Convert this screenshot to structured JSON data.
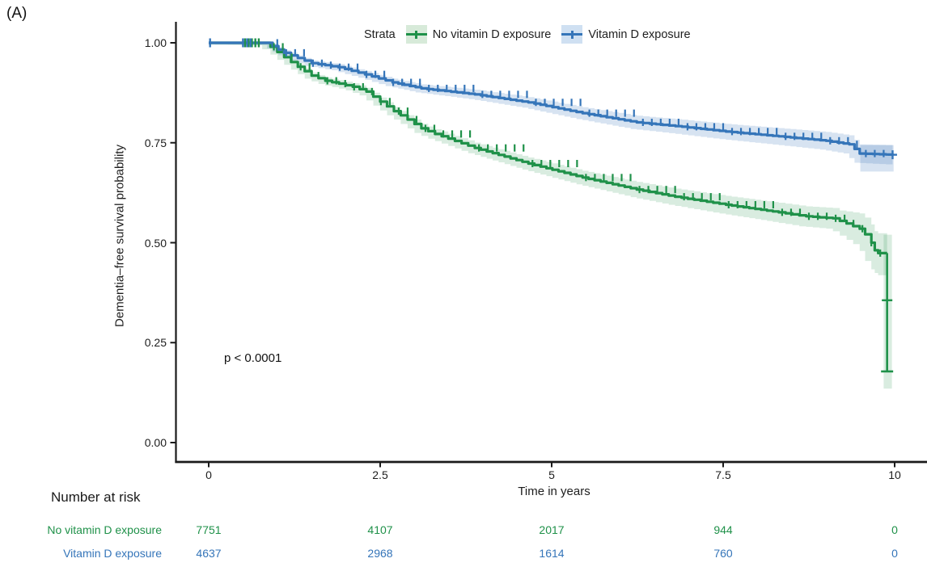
{
  "figure": {
    "panel_label": "(A)",
    "background": "#ffffff"
  },
  "chart_data": {
    "type": "line",
    "subtype": "kaplan_meier_survival",
    "title": "",
    "xlabel": "Time in years",
    "ylabel": "Dementia–free survival probability",
    "xlim": [
      0,
      10
    ],
    "ylim": [
      0,
      1
    ],
    "grid": false,
    "legend": {
      "title": "Strata",
      "position": "top"
    },
    "annotations": [
      {
        "text": "p < 0.0001",
        "time": 0.22,
        "probability": 0.21
      }
    ],
    "x_ticks": [
      {
        "value": 0,
        "label": "0"
      },
      {
        "value": 2.5,
        "label": "2.5"
      },
      {
        "value": 5,
        "label": "5"
      },
      {
        "value": 7.5,
        "label": "7.5"
      },
      {
        "value": 10,
        "label": "10"
      }
    ],
    "y_ticks": [
      {
        "value": 0,
        "label": "0.00"
      },
      {
        "value": 0.25,
        "label": "0.25"
      },
      {
        "value": 0.5,
        "label": "0.50"
      },
      {
        "value": 0.75,
        "label": "0.75"
      },
      {
        "value": 1,
        "label": "1.00"
      }
    ],
    "series": [
      {
        "name": "No vitamin D exposure",
        "color": "#1f9149",
        "ci_color": "rgba(31,145,73,0.17)",
        "legend_key_bg": "#d7ead9",
        "points": [
          [
            0,
            1.0
          ],
          [
            0.78,
            1.0
          ],
          [
            0.9,
            0.99
          ],
          [
            1.1,
            0.964
          ],
          [
            1.3,
            0.94
          ],
          [
            1.5,
            0.918
          ],
          [
            1.7,
            0.905
          ],
          [
            1.9,
            0.898
          ],
          [
            2.1,
            0.89
          ],
          [
            2.3,
            0.878
          ],
          [
            2.5,
            0.853
          ],
          [
            2.7,
            0.829
          ],
          [
            2.9,
            0.808
          ],
          [
            3.1,
            0.786
          ],
          [
            3.3,
            0.772
          ],
          [
            3.88,
            0.737
          ],
          [
            4.66,
            0.698
          ],
          [
            5.45,
            0.663
          ],
          [
            6.24,
            0.633
          ],
          [
            6.8,
            0.615
          ],
          [
            7.54,
            0.595
          ],
          [
            8.31,
            0.576
          ],
          [
            8.71,
            0.566
          ],
          [
            9.1,
            0.561
          ],
          [
            9.3,
            0.548
          ],
          [
            9.49,
            0.535
          ],
          [
            9.57,
            0.521
          ],
          [
            9.66,
            0.5
          ],
          [
            9.71,
            0.481
          ],
          [
            9.76,
            0.474
          ],
          [
            9.89,
            0.474
          ]
        ],
        "ci": {
          "base": 0.004,
          "growth": 0.0024,
          "end_ramp": [
            9.2,
            0.04
          ],
          "end_band": {
            "t0": 9.84,
            "t1": 9.96,
            "p0": 0.135,
            "p1": 0.52
          }
        },
        "early_censors": [
          0.53,
          0.58,
          0.63,
          0.68,
          0.73
        ],
        "dense_censor_from": 0.95,
        "final_drop": {
          "time": 9.89,
          "from": 0.474,
          "to": 0.178,
          "censor_at": 0.356
        }
      },
      {
        "name": "Vitamin D exposure",
        "color": "#3575b9",
        "ci_color": "rgba(53,117,185,0.20)",
        "legend_key_bg": "#cfe0f2",
        "points": [
          [
            0,
            1.0
          ],
          [
            0.85,
            1.0
          ],
          [
            1.1,
            0.975
          ],
          [
            1.5,
            0.949
          ],
          [
            1.7,
            0.944
          ],
          [
            1.89,
            0.939
          ],
          [
            2.28,
            0.921
          ],
          [
            2.68,
            0.901
          ],
          [
            3.1,
            0.886
          ],
          [
            3.88,
            0.871
          ],
          [
            4.66,
            0.851
          ],
          [
            5.45,
            0.824
          ],
          [
            6.24,
            0.801
          ],
          [
            6.9,
            0.79
          ],
          [
            7.54,
            0.778
          ],
          [
            8.31,
            0.766
          ],
          [
            9.0,
            0.755
          ],
          [
            9.34,
            0.746
          ],
          [
            9.49,
            0.723
          ],
          [
            9.97,
            0.72
          ]
        ],
        "ci": {
          "base": 0.004,
          "growth": 0.002,
          "end_ramp": null,
          "end_band": {
            "t0": 9.5,
            "t1": 9.985,
            "p0": 0.678,
            "p1": 0.744
          }
        },
        "early_censors": [
          0.02,
          0.5,
          0.56,
          0.61
        ],
        "dense_censor_from": 1.0,
        "end_censor_t": 9.97
      }
    ],
    "risk_table": {
      "title": "Number at risk",
      "times": [
        0,
        2.5,
        5,
        7.5,
        10
      ],
      "rows": [
        {
          "label": "No vitamin D exposure",
          "color": "#1f9149",
          "counts": [
            "7751",
            "4107",
            "2017",
            "944",
            "0"
          ]
        },
        {
          "label": "Vitamin D exposure",
          "color": "#3575b9",
          "counts": [
            "4637",
            "2968",
            "1614",
            "760",
            "0"
          ]
        }
      ]
    }
  }
}
